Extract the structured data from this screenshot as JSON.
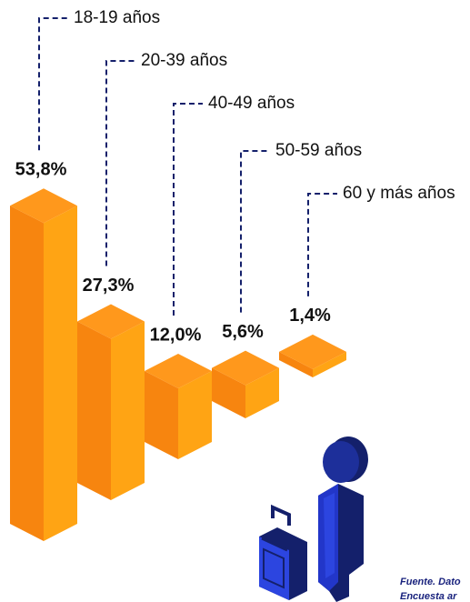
{
  "chart_data": {
    "type": "bar3d",
    "categories": [
      "18-19 años",
      "20-39 años",
      "40-49 años",
      "50-59 años",
      "60 y más años"
    ],
    "values": [
      53.8,
      27.3,
      12.0,
      5.6,
      1.4
    ],
    "value_labels": [
      "53,8%",
      "27,3%",
      "12,0%",
      "5,6%",
      "1,4%"
    ],
    "colors": {
      "left": "#f7850f",
      "right": "#ffa414",
      "top": "#ff981c"
    },
    "source": [
      "Fuente. Dato",
      "Encuesta ar"
    ]
  }
}
